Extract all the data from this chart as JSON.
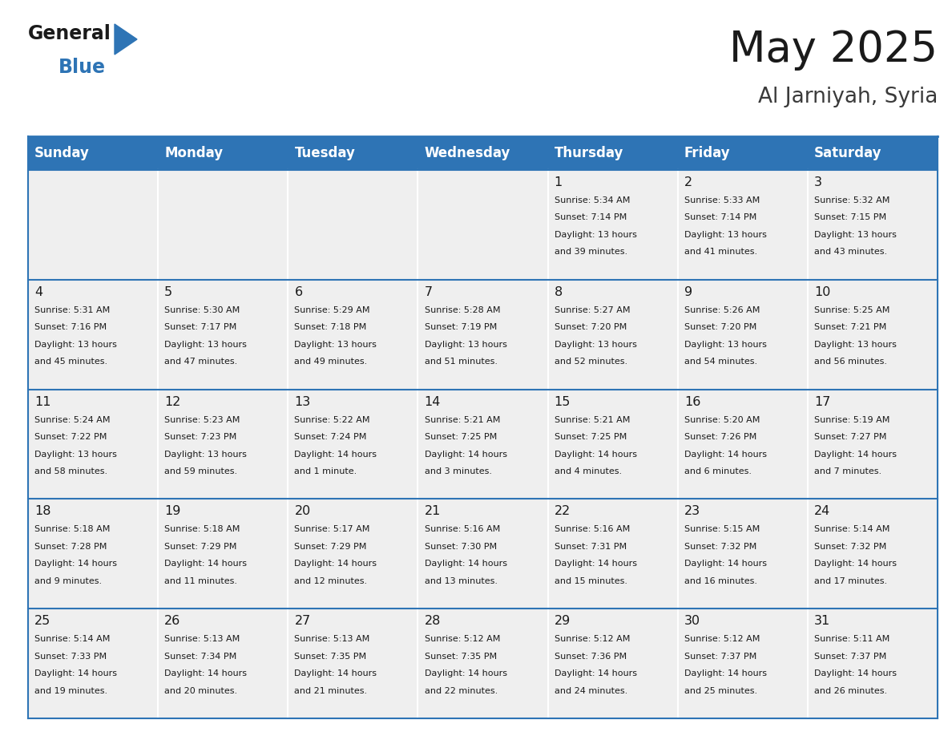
{
  "title": "May 2025",
  "subtitle": "Al Jarniyah, Syria",
  "days_of_week": [
    "Sunday",
    "Monday",
    "Tuesday",
    "Wednesday",
    "Thursday",
    "Friday",
    "Saturday"
  ],
  "header_bg": "#2E74B5",
  "header_text": "#FFFFFF",
  "cell_bg_light": "#EFEFEF",
  "border_color": "#2E74B5",
  "title_color": "#1A1A1A",
  "subtitle_color": "#3A3A3A",
  "blue_color": "#2E74B5",
  "cell_text_color": "#1A1A1A",
  "calendar": [
    [
      {
        "day": null,
        "info": ""
      },
      {
        "day": null,
        "info": ""
      },
      {
        "day": null,
        "info": ""
      },
      {
        "day": null,
        "info": ""
      },
      {
        "day": 1,
        "info": "Sunrise: 5:34 AM\nSunset: 7:14 PM\nDaylight: 13 hours\nand 39 minutes."
      },
      {
        "day": 2,
        "info": "Sunrise: 5:33 AM\nSunset: 7:14 PM\nDaylight: 13 hours\nand 41 minutes."
      },
      {
        "day": 3,
        "info": "Sunrise: 5:32 AM\nSunset: 7:15 PM\nDaylight: 13 hours\nand 43 minutes."
      }
    ],
    [
      {
        "day": 4,
        "info": "Sunrise: 5:31 AM\nSunset: 7:16 PM\nDaylight: 13 hours\nand 45 minutes."
      },
      {
        "day": 5,
        "info": "Sunrise: 5:30 AM\nSunset: 7:17 PM\nDaylight: 13 hours\nand 47 minutes."
      },
      {
        "day": 6,
        "info": "Sunrise: 5:29 AM\nSunset: 7:18 PM\nDaylight: 13 hours\nand 49 minutes."
      },
      {
        "day": 7,
        "info": "Sunrise: 5:28 AM\nSunset: 7:19 PM\nDaylight: 13 hours\nand 51 minutes."
      },
      {
        "day": 8,
        "info": "Sunrise: 5:27 AM\nSunset: 7:20 PM\nDaylight: 13 hours\nand 52 minutes."
      },
      {
        "day": 9,
        "info": "Sunrise: 5:26 AM\nSunset: 7:20 PM\nDaylight: 13 hours\nand 54 minutes."
      },
      {
        "day": 10,
        "info": "Sunrise: 5:25 AM\nSunset: 7:21 PM\nDaylight: 13 hours\nand 56 minutes."
      }
    ],
    [
      {
        "day": 11,
        "info": "Sunrise: 5:24 AM\nSunset: 7:22 PM\nDaylight: 13 hours\nand 58 minutes."
      },
      {
        "day": 12,
        "info": "Sunrise: 5:23 AM\nSunset: 7:23 PM\nDaylight: 13 hours\nand 59 minutes."
      },
      {
        "day": 13,
        "info": "Sunrise: 5:22 AM\nSunset: 7:24 PM\nDaylight: 14 hours\nand 1 minute."
      },
      {
        "day": 14,
        "info": "Sunrise: 5:21 AM\nSunset: 7:25 PM\nDaylight: 14 hours\nand 3 minutes."
      },
      {
        "day": 15,
        "info": "Sunrise: 5:21 AM\nSunset: 7:25 PM\nDaylight: 14 hours\nand 4 minutes."
      },
      {
        "day": 16,
        "info": "Sunrise: 5:20 AM\nSunset: 7:26 PM\nDaylight: 14 hours\nand 6 minutes."
      },
      {
        "day": 17,
        "info": "Sunrise: 5:19 AM\nSunset: 7:27 PM\nDaylight: 14 hours\nand 7 minutes."
      }
    ],
    [
      {
        "day": 18,
        "info": "Sunrise: 5:18 AM\nSunset: 7:28 PM\nDaylight: 14 hours\nand 9 minutes."
      },
      {
        "day": 19,
        "info": "Sunrise: 5:18 AM\nSunset: 7:29 PM\nDaylight: 14 hours\nand 11 minutes."
      },
      {
        "day": 20,
        "info": "Sunrise: 5:17 AM\nSunset: 7:29 PM\nDaylight: 14 hours\nand 12 minutes."
      },
      {
        "day": 21,
        "info": "Sunrise: 5:16 AM\nSunset: 7:30 PM\nDaylight: 14 hours\nand 13 minutes."
      },
      {
        "day": 22,
        "info": "Sunrise: 5:16 AM\nSunset: 7:31 PM\nDaylight: 14 hours\nand 15 minutes."
      },
      {
        "day": 23,
        "info": "Sunrise: 5:15 AM\nSunset: 7:32 PM\nDaylight: 14 hours\nand 16 minutes."
      },
      {
        "day": 24,
        "info": "Sunrise: 5:14 AM\nSunset: 7:32 PM\nDaylight: 14 hours\nand 17 minutes."
      }
    ],
    [
      {
        "day": 25,
        "info": "Sunrise: 5:14 AM\nSunset: 7:33 PM\nDaylight: 14 hours\nand 19 minutes."
      },
      {
        "day": 26,
        "info": "Sunrise: 5:13 AM\nSunset: 7:34 PM\nDaylight: 14 hours\nand 20 minutes."
      },
      {
        "day": 27,
        "info": "Sunrise: 5:13 AM\nSunset: 7:35 PM\nDaylight: 14 hours\nand 21 minutes."
      },
      {
        "day": 28,
        "info": "Sunrise: 5:12 AM\nSunset: 7:35 PM\nDaylight: 14 hours\nand 22 minutes."
      },
      {
        "day": 29,
        "info": "Sunrise: 5:12 AM\nSunset: 7:36 PM\nDaylight: 14 hours\nand 24 minutes."
      },
      {
        "day": 30,
        "info": "Sunrise: 5:12 AM\nSunset: 7:37 PM\nDaylight: 14 hours\nand 25 minutes."
      },
      {
        "day": 31,
        "info": "Sunrise: 5:11 AM\nSunset: 7:37 PM\nDaylight: 14 hours\nand 26 minutes."
      }
    ]
  ]
}
